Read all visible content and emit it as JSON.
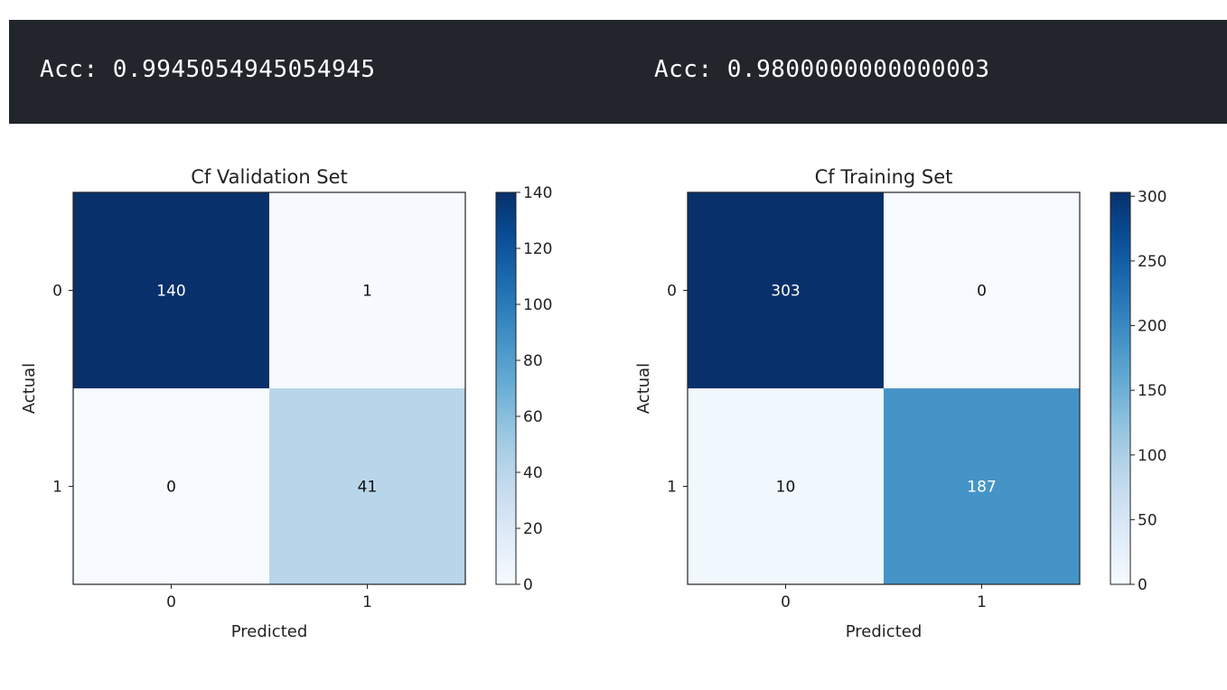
{
  "accuracy": {
    "left": "Acc: 0.9945054945054945",
    "right": "Acc: 0.9800000000000003"
  },
  "colors": {
    "banner_bg": "#23252c",
    "banner_text": "#ffffff",
    "colormap": "Blues"
  },
  "chart_data": [
    {
      "type": "heatmap",
      "title": "Cf Validation Set",
      "xlabel": "Predicted",
      "ylabel": "Actual",
      "x_categories": [
        "0",
        "1"
      ],
      "y_categories": [
        "0",
        "1"
      ],
      "values": [
        [
          140,
          1
        ],
        [
          0,
          41
        ]
      ],
      "colorbar": {
        "min": 0,
        "max": 140,
        "ticks": [
          "0",
          "20",
          "40",
          "60",
          "80",
          "100",
          "120",
          "140"
        ]
      },
      "grid": false
    },
    {
      "type": "heatmap",
      "title": "Cf Training Set",
      "xlabel": "Predicted",
      "ylabel": "Actual",
      "x_categories": [
        "0",
        "1"
      ],
      "y_categories": [
        "0",
        "1"
      ],
      "values": [
        [
          303,
          0
        ],
        [
          10,
          187
        ]
      ],
      "colorbar": {
        "min": 0,
        "max": 303,
        "ticks": [
          "0",
          "50",
          "100",
          "150",
          "200",
          "250",
          "300"
        ]
      },
      "grid": false
    }
  ]
}
